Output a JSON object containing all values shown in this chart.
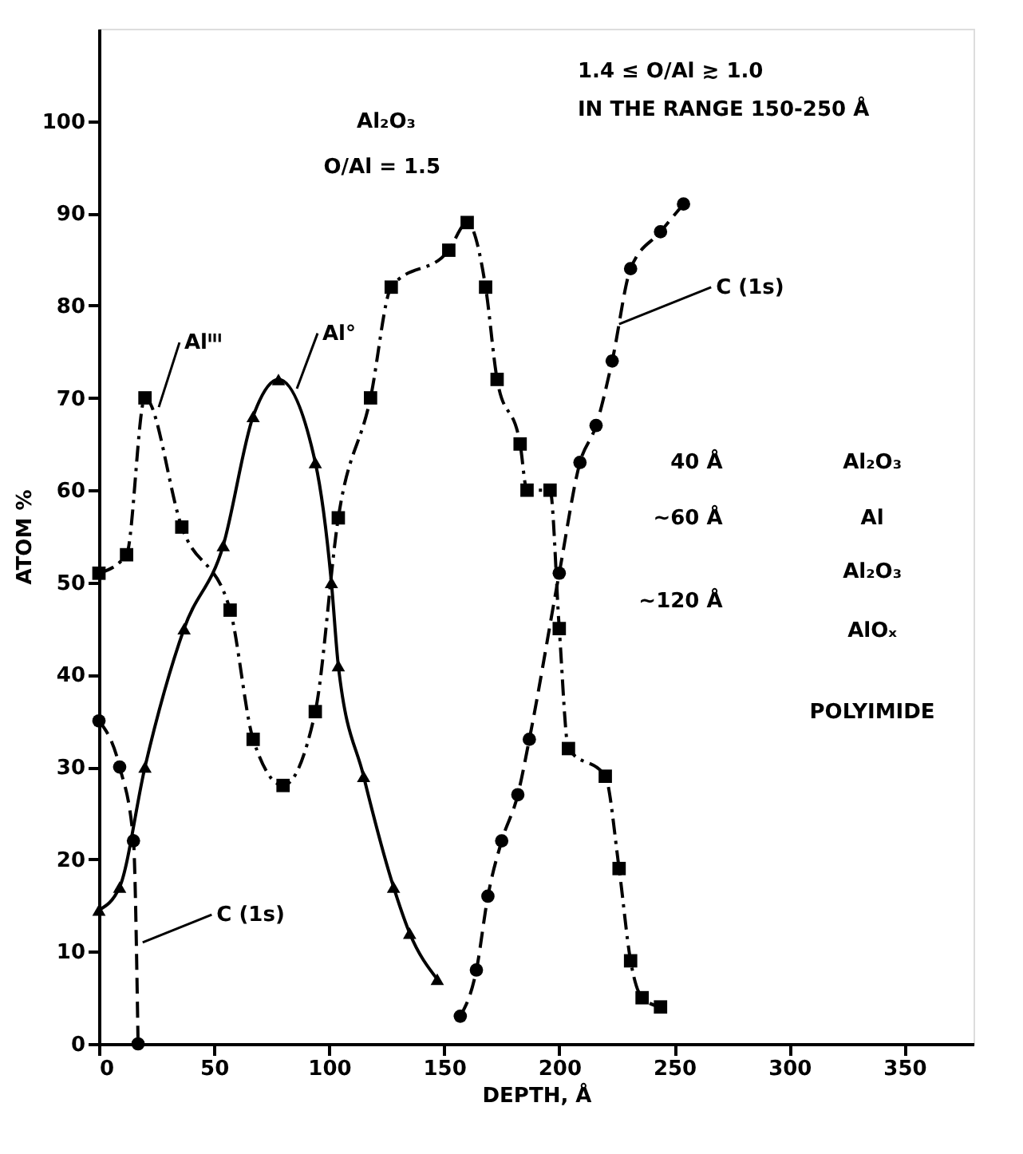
{
  "chart_data": {
    "type": "line",
    "xlabel": "DEPTH, Å",
    "ylabel": "ATOM %",
    "xlim": [
      0,
      380
    ],
    "ylim": [
      0,
      110
    ],
    "xticks": [
      0,
      50,
      100,
      150,
      200,
      250,
      300,
      350
    ],
    "yticks": [
      0,
      10,
      20,
      30,
      40,
      50,
      60,
      70,
      80,
      90,
      100
    ],
    "grid": false,
    "series": [
      {
        "color": "#000000",
        "marker": "square",
        "line_style": "dashdot",
        "x": [
          0,
          12,
          20,
          36,
          57,
          67,
          80,
          94,
          104,
          118,
          127,
          152,
          160,
          168,
          173,
          183,
          186,
          196,
          200,
          204,
          220,
          226,
          231,
          236,
          244
        ],
        "values": [
          51,
          53,
          70,
          56,
          47,
          33,
          28,
          36,
          57,
          70,
          82,
          86,
          89,
          82,
          72,
          65,
          60,
          60,
          45,
          32,
          29,
          19,
          9,
          5,
          4
        ]
      },
      {
        "color": "#000000",
        "marker": "triangle",
        "line_style": "solid",
        "x": [
          0,
          9,
          20,
          37,
          54,
          67,
          78,
          94,
          101,
          104,
          115,
          128,
          135,
          147
        ],
        "values": [
          14.5,
          17,
          30,
          45,
          54,
          68,
          72,
          63,
          50,
          41,
          29,
          17,
          12,
          7
        ]
      },
      {
        "color": "#000000",
        "marker": "circle",
        "line_style": "dashed",
        "x": [
          0,
          9,
          15,
          17,
          100,
          157,
          164,
          169,
          175,
          182,
          187,
          200,
          209,
          216,
          223,
          231,
          244,
          254
        ],
        "values": [
          35,
          30,
          22,
          0,
          null,
          3,
          8,
          16,
          22,
          27,
          33,
          51,
          63,
          67,
          74,
          84,
          88,
          91
        ]
      }
    ],
    "annotations": [
      "Al₂O₃",
      "O/Al = 1.5",
      "1.4 ≤ O/Al ≳ 1.0",
      "IN THE RANGE 150-250 Å",
      "40 Å",
      "~60 Å",
      "~120 Å",
      "Al₂O₃",
      "Al",
      "Al₂O₃",
      "AlOₓ",
      "POLYIMIDE",
      {
        "text": "Alᴵᴵᴵ",
        "x": 26,
        "y": 69
      },
      {
        "text": "Al°",
        "x": 86,
        "y": 71
      },
      {
        "text": "C (1s)",
        "x": 19,
        "y": 11
      },
      {
        "text": "C (1s)",
        "x": 226,
        "y": 78
      }
    ]
  }
}
